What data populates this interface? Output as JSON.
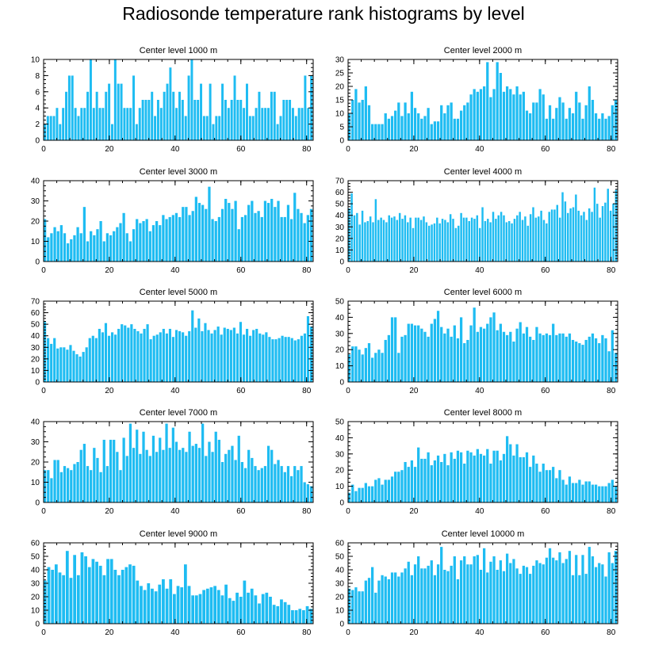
{
  "title": "Radiosonde temperature rank histograms by level",
  "colors": {
    "bar": "#1ebcf2",
    "axis": "#000000"
  },
  "chart_data": [
    {
      "type": "bar",
      "title": "Center level 1000 m",
      "xlim": [
        0,
        82
      ],
      "ylim": [
        0,
        10
      ],
      "xticks": [
        0,
        20,
        40,
        60,
        80
      ],
      "yticks": [
        0,
        2,
        4,
        6,
        8,
        10
      ],
      "values": [
        2,
        3,
        3,
        3,
        4,
        2,
        4,
        6,
        8,
        8,
        4,
        3,
        4,
        4,
        6,
        10,
        4,
        6,
        4,
        4,
        6,
        7,
        2,
        10,
        7,
        7,
        4,
        4,
        4,
        8,
        2,
        4,
        5,
        5,
        5,
        6,
        3,
        5,
        4,
        6,
        7,
        9,
        6,
        4,
        6,
        5,
        3,
        8,
        10,
        5,
        5,
        7,
        3,
        3,
        7,
        2,
        3,
        3,
        7,
        5,
        4,
        5,
        8,
        5,
        5,
        4,
        7,
        3,
        3,
        4,
        6,
        4,
        4,
        4,
        6,
        6,
        2,
        3,
        5,
        5,
        5,
        4,
        3,
        4,
        4,
        8,
        4,
        8
      ]
    },
    {
      "type": "bar",
      "title": "Center level 2000 m",
      "xlim": [
        0,
        82
      ],
      "ylim": [
        0,
        30
      ],
      "xticks": [
        0,
        20,
        40,
        60,
        80
      ],
      "yticks": [
        0,
        5,
        10,
        15,
        20,
        25,
        30
      ],
      "values": [
        10,
        15,
        19,
        14,
        15,
        20,
        13,
        6,
        6,
        6,
        6,
        10,
        8,
        9,
        11,
        14,
        9,
        14,
        10,
        18,
        12,
        10,
        8,
        9,
        12,
        6,
        7,
        7,
        13,
        10,
        13,
        14,
        8,
        8,
        11,
        13,
        14,
        17,
        19,
        18,
        19,
        20,
        29,
        16,
        19,
        29,
        25,
        18,
        20,
        19,
        17,
        20,
        17,
        18,
        11,
        10,
        14,
        14,
        19,
        17,
        8,
        13,
        8,
        12,
        16,
        14,
        8,
        12,
        10,
        18,
        14,
        8,
        13,
        20,
        15,
        10,
        8,
        10,
        8,
        9,
        13,
        15
      ]
    },
    {
      "type": "bar",
      "title": "Center level 3000 m",
      "xlim": [
        0,
        82
      ],
      "ylim": [
        0,
        40
      ],
      "xticks": [
        0,
        20,
        40,
        60,
        80
      ],
      "yticks": [
        0,
        10,
        20,
        30,
        40
      ],
      "values": [
        21,
        12,
        14,
        17,
        15,
        18,
        14,
        9,
        11,
        13,
        17,
        14,
        27,
        10,
        15,
        13,
        16,
        20,
        10,
        14,
        13,
        15,
        17,
        19,
        24,
        14,
        10,
        16,
        21,
        19,
        20,
        21,
        15,
        18,
        20,
        18,
        23,
        21,
        22,
        23,
        24,
        22,
        27,
        27,
        23,
        25,
        32,
        29,
        28,
        26,
        37,
        21,
        20,
        22,
        26,
        31,
        29,
        26,
        30,
        16,
        22,
        23,
        28,
        30,
        24,
        25,
        22,
        30,
        29,
        31,
        27,
        30,
        22,
        22,
        28,
        21,
        34,
        26,
        24,
        19,
        23,
        26
      ]
    },
    {
      "type": "bar",
      "title": "Center level 4000 m",
      "xlim": [
        0,
        82
      ],
      "ylim": [
        0,
        70
      ],
      "xticks": [
        0,
        20,
        40,
        60,
        80
      ],
      "yticks": [
        0,
        10,
        20,
        30,
        40,
        50,
        60,
        70
      ],
      "values": [
        46,
        59,
        40,
        42,
        32,
        44,
        34,
        35,
        39,
        34,
        54,
        36,
        38,
        36,
        34,
        40,
        38,
        39,
        36,
        42,
        37,
        40,
        34,
        38,
        29,
        38,
        38,
        36,
        39,
        34,
        31,
        32,
        33,
        38,
        33,
        37,
        36,
        34,
        41,
        37,
        29,
        31,
        42,
        38,
        38,
        35,
        38,
        37,
        40,
        29,
        47,
        35,
        37,
        34,
        43,
        37,
        40,
        43,
        40,
        34,
        35,
        33,
        37,
        40,
        43,
        36,
        39,
        31,
        41,
        47,
        38,
        39,
        44,
        36,
        33,
        43,
        45,
        45,
        49,
        38,
        60,
        52,
        42,
        46,
        47,
        58,
        44,
        40,
        43,
        36,
        46,
        43,
        64,
        50,
        38,
        48,
        51,
        63,
        44,
        50,
        62
      ]
    },
    {
      "type": "bar",
      "title": "Center level 5000 m",
      "xlim": [
        0,
        82
      ],
      "ylim": [
        0,
        70
      ],
      "xticks": [
        0,
        20,
        40,
        60,
        80
      ],
      "yticks": [
        0,
        10,
        20,
        30,
        40,
        50,
        60,
        70
      ],
      "values": [
        52,
        38,
        33,
        38,
        29,
        30,
        30,
        28,
        32,
        27,
        24,
        22,
        26,
        30,
        38,
        40,
        38,
        46,
        43,
        51,
        40,
        43,
        41,
        46,
        50,
        49,
        47,
        50,
        46,
        44,
        42,
        46,
        50,
        37,
        40,
        41,
        43,
        46,
        42,
        46,
        39,
        45,
        44,
        43,
        40,
        44,
        62,
        47,
        55,
        44,
        51,
        45,
        42,
        45,
        48,
        41,
        47,
        46,
        45,
        47,
        42,
        52,
        41,
        46,
        40,
        45,
        46,
        42,
        41,
        43,
        39,
        37,
        37,
        38,
        40,
        39,
        39,
        38,
        36,
        37,
        40,
        42,
        57,
        48
      ]
    },
    {
      "type": "bar",
      "title": "Center level 6000 m",
      "xlim": [
        0,
        82
      ],
      "ylim": [
        0,
        50
      ],
      "xticks": [
        0,
        20,
        40,
        60,
        80
      ],
      "yticks": [
        0,
        10,
        20,
        30,
        40,
        50
      ],
      "values": [
        17,
        22,
        22,
        20,
        17,
        21,
        24,
        15,
        18,
        20,
        18,
        26,
        29,
        40,
        40,
        18,
        28,
        29,
        36,
        36,
        35,
        35,
        33,
        31,
        28,
        36,
        39,
        44,
        34,
        30,
        33,
        28,
        35,
        27,
        40,
        24,
        26,
        35,
        46,
        31,
        34,
        33,
        36,
        40,
        43,
        32,
        36,
        31,
        29,
        31,
        25,
        33,
        37,
        30,
        34,
        28,
        26,
        34,
        30,
        29,
        30,
        29,
        36,
        29,
        30,
        30,
        28,
        30,
        26,
        25,
        24,
        23,
        26,
        28,
        30,
        27,
        24,
        29,
        27,
        19,
        32,
        18
      ]
    },
    {
      "type": "bar",
      "title": "Center level 7000 m",
      "xlim": [
        0,
        82
      ],
      "ylim": [
        0,
        40
      ],
      "xticks": [
        0,
        20,
        40,
        60,
        80
      ],
      "yticks": [
        0,
        10,
        20,
        30,
        40
      ],
      "values": [
        16,
        16,
        12,
        21,
        21,
        15,
        18,
        17,
        16,
        19,
        20,
        26,
        29,
        18,
        16,
        27,
        22,
        15,
        31,
        18,
        31,
        31,
        25,
        16,
        32,
        23,
        39,
        27,
        36,
        24,
        35,
        26,
        23,
        33,
        25,
        32,
        26,
        39,
        27,
        37,
        30,
        26,
        27,
        25,
        35,
        28,
        29,
        27,
        39,
        23,
        30,
        25,
        35,
        31,
        20,
        24,
        26,
        28,
        21,
        33,
        20,
        17,
        26,
        22,
        18,
        16,
        17,
        18,
        28,
        26,
        19,
        21,
        18,
        15,
        18,
        13,
        18,
        16,
        18,
        10,
        9,
        8
      ]
    },
    {
      "type": "bar",
      "title": "Center level 8000 m",
      "xlim": [
        0,
        82
      ],
      "ylim": [
        0,
        50
      ],
      "xticks": [
        0,
        20,
        40,
        60,
        80
      ],
      "yticks": [
        0,
        10,
        20,
        30,
        40,
        50
      ],
      "values": [
        6,
        11,
        7,
        9,
        9,
        12,
        10,
        10,
        14,
        15,
        11,
        14,
        14,
        16,
        19,
        19,
        20,
        25,
        22,
        26,
        22,
        34,
        27,
        27,
        31,
        23,
        26,
        29,
        25,
        30,
        23,
        31,
        27,
        32,
        31,
        24,
        32,
        31,
        29,
        33,
        30,
        29,
        33,
        24,
        32,
        32,
        26,
        30,
        41,
        36,
        29,
        36,
        28,
        28,
        31,
        22,
        29,
        24,
        19,
        24,
        20,
        20,
        22,
        15,
        20,
        14,
        11,
        16,
        12,
        12,
        14,
        11,
        13,
        13,
        11,
        11,
        10,
        10,
        10,
        12,
        14,
        10
      ]
    },
    {
      "type": "bar",
      "title": "Center level 9000 m",
      "xlim": [
        0,
        82
      ],
      "ylim": [
        0,
        60
      ],
      "xticks": [
        0,
        20,
        40,
        60,
        80
      ],
      "yticks": [
        0,
        10,
        20,
        30,
        40,
        50,
        60
      ],
      "values": [
        32,
        42,
        40,
        44,
        38,
        36,
        54,
        34,
        51,
        36,
        53,
        50,
        42,
        48,
        46,
        43,
        36,
        48,
        48,
        40,
        36,
        40,
        42,
        44,
        43,
        32,
        28,
        25,
        30,
        26,
        24,
        29,
        33,
        26,
        33,
        22,
        28,
        27,
        44,
        28,
        21,
        21,
        22,
        25,
        26,
        27,
        28,
        25,
        21,
        29,
        19,
        17,
        23,
        20,
        32,
        23,
        26,
        21,
        15,
        22,
        23,
        20,
        14,
        13,
        18,
        16,
        14,
        10,
        10,
        11,
        10,
        13,
        11
      ]
    },
    {
      "type": "bar",
      "title": "Center level 10000 m",
      "xlim": [
        0,
        82
      ],
      "ylim": [
        0,
        60
      ],
      "xticks": [
        0,
        20,
        40,
        60,
        80
      ],
      "yticks": [
        0,
        10,
        20,
        30,
        40,
        50,
        60
      ],
      "values": [
        26,
        25,
        27,
        24,
        24,
        32,
        34,
        42,
        23,
        32,
        36,
        35,
        33,
        38,
        38,
        35,
        38,
        41,
        46,
        36,
        44,
        50,
        41,
        41,
        43,
        47,
        36,
        44,
        57,
        40,
        39,
        43,
        50,
        33,
        47,
        50,
        44,
        44,
        50,
        51,
        40,
        56,
        38,
        46,
        50,
        40,
        47,
        39,
        52,
        45,
        48,
        41,
        37,
        43,
        42,
        37,
        43,
        47,
        45,
        44,
        49,
        56,
        49,
        47,
        53,
        45,
        48,
        54,
        36,
        51,
        36,
        51,
        37,
        57,
        50,
        42,
        45,
        44,
        35,
        53,
        45,
        54
      ]
    }
  ]
}
